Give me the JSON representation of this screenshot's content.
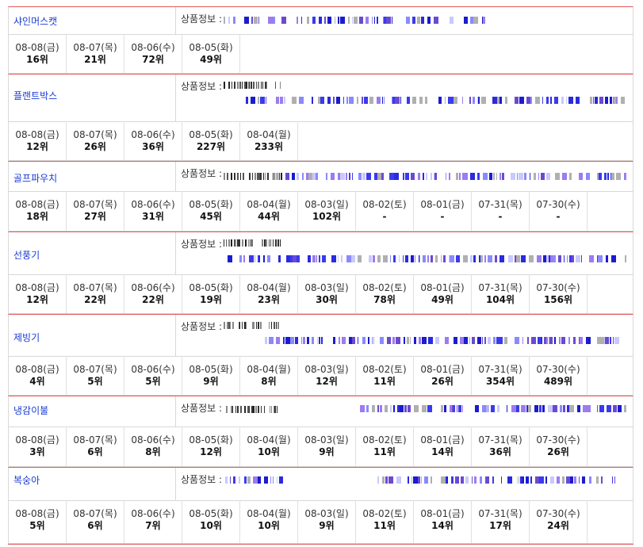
{
  "info_label": "상품정보 :",
  "items": [
    {
      "keyword": "샤인머스캣",
      "ranks": [
        {
          "date": "08-08(금)",
          "rank": "16위"
        },
        {
          "date": "08-07(목)",
          "rank": "21위"
        },
        {
          "date": "08-06(수)",
          "rank": "72위"
        },
        {
          "date": "08-05(화)",
          "rank": "49위"
        }
      ]
    },
    {
      "keyword": "플랜트박스",
      "ranks": [
        {
          "date": "08-08(금)",
          "rank": "12위"
        },
        {
          "date": "08-07(목)",
          "rank": "26위"
        },
        {
          "date": "08-06(수)",
          "rank": "36위"
        },
        {
          "date": "08-05(화)",
          "rank": "227위"
        },
        {
          "date": "08-04(월)",
          "rank": "233위"
        }
      ]
    },
    {
      "keyword": "골프파우치",
      "ranks": [
        {
          "date": "08-08(금)",
          "rank": "18위"
        },
        {
          "date": "08-07(목)",
          "rank": "27위"
        },
        {
          "date": "08-06(수)",
          "rank": "31위"
        },
        {
          "date": "08-05(화)",
          "rank": "45위"
        },
        {
          "date": "08-04(월)",
          "rank": "44위"
        },
        {
          "date": "08-03(일)",
          "rank": "102위"
        },
        {
          "date": "08-02(토)",
          "rank": "-"
        },
        {
          "date": "08-01(금)",
          "rank": "-"
        },
        {
          "date": "07-31(목)",
          "rank": "-"
        },
        {
          "date": "07-30(수)",
          "rank": "-"
        }
      ]
    },
    {
      "keyword": "선풍기",
      "ranks": [
        {
          "date": "08-08(금)",
          "rank": "12위"
        },
        {
          "date": "08-07(목)",
          "rank": "22위"
        },
        {
          "date": "08-06(수)",
          "rank": "22위"
        },
        {
          "date": "08-05(화)",
          "rank": "19위"
        },
        {
          "date": "08-04(월)",
          "rank": "23위"
        },
        {
          "date": "08-03(일)",
          "rank": "30위"
        },
        {
          "date": "08-02(토)",
          "rank": "78위"
        },
        {
          "date": "08-01(금)",
          "rank": "49위"
        },
        {
          "date": "07-31(목)",
          "rank": "104위"
        },
        {
          "date": "07-30(수)",
          "rank": "156위"
        }
      ]
    },
    {
      "keyword": "제빙기",
      "ranks": [
        {
          "date": "08-08(금)",
          "rank": "4위"
        },
        {
          "date": "08-07(목)",
          "rank": "5위"
        },
        {
          "date": "08-06(수)",
          "rank": "5위"
        },
        {
          "date": "08-05(화)",
          "rank": "9위"
        },
        {
          "date": "08-04(월)",
          "rank": "8위"
        },
        {
          "date": "08-03(일)",
          "rank": "12위"
        },
        {
          "date": "08-02(토)",
          "rank": "11위"
        },
        {
          "date": "08-01(금)",
          "rank": "26위"
        },
        {
          "date": "07-31(목)",
          "rank": "354위"
        },
        {
          "date": "07-30(수)",
          "rank": "489위"
        }
      ]
    },
    {
      "keyword": "냉감이불",
      "ranks": [
        {
          "date": "08-08(금)",
          "rank": "3위"
        },
        {
          "date": "08-07(목)",
          "rank": "6위"
        },
        {
          "date": "08-06(수)",
          "rank": "8위"
        },
        {
          "date": "08-05(화)",
          "rank": "12위"
        },
        {
          "date": "08-04(월)",
          "rank": "10위"
        },
        {
          "date": "08-03(일)",
          "rank": "9위"
        },
        {
          "date": "08-02(토)",
          "rank": "11위"
        },
        {
          "date": "08-01(금)",
          "rank": "14위"
        },
        {
          "date": "07-31(목)",
          "rank": "36위"
        },
        {
          "date": "07-30(수)",
          "rank": "26위"
        }
      ]
    },
    {
      "keyword": "복숭아",
      "ranks": [
        {
          "date": "08-08(금)",
          "rank": "5위"
        },
        {
          "date": "08-07(목)",
          "rank": "6위"
        },
        {
          "date": "08-06(수)",
          "rank": "7위"
        },
        {
          "date": "08-05(화)",
          "rank": "10위"
        },
        {
          "date": "08-04(월)",
          "rank": "10위"
        },
        {
          "date": "08-03(일)",
          "rank": "9위"
        },
        {
          "date": "08-02(토)",
          "rank": "11위"
        },
        {
          "date": "08-01(금)",
          "rank": "14위"
        },
        {
          "date": "07-31(목)",
          "rank": "17위"
        },
        {
          "date": "07-30(수)",
          "rank": "24위"
        }
      ]
    }
  ],
  "colors": {
    "keyword_link": "#1a3ad6",
    "accent_border": "#e05858",
    "bar_primary": "#2a2ae0"
  }
}
